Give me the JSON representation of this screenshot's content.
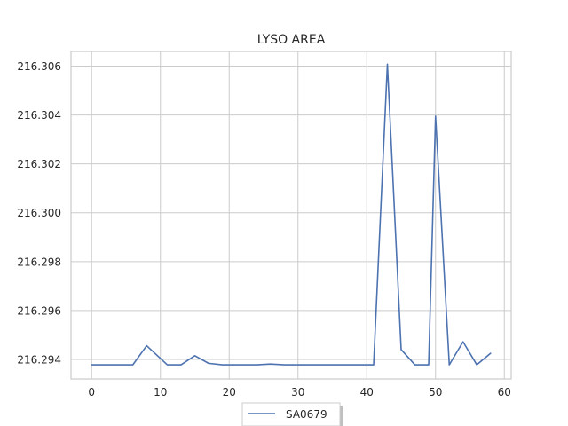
{
  "chart_data": {
    "type": "line",
    "title": "LYSO AREA",
    "xlabel": "",
    "ylabel": "",
    "xlim": [
      -3,
      61
    ],
    "ylim": [
      216.2932,
      216.3066
    ],
    "x_ticks": [
      0,
      10,
      20,
      30,
      40,
      50,
      60
    ],
    "y_ticks": [
      216.294,
      216.296,
      216.298,
      216.3,
      216.302,
      216.304,
      216.306
    ],
    "y_tick_labels": [
      "216.294",
      "216.296",
      "216.298",
      "216.300",
      "216.302",
      "216.304",
      "216.306"
    ],
    "grid": true,
    "legend_position": "lower center",
    "series": [
      {
        "name": "SA0679",
        "color": "#4c72b0",
        "x": [
          0,
          2,
          4,
          6,
          8,
          11,
          13,
          15,
          17,
          19,
          22,
          24,
          26,
          28,
          30,
          32,
          34,
          37,
          39,
          41,
          43,
          45,
          47,
          49,
          50,
          52,
          54,
          56,
          58
        ],
        "y": [
          216.29378,
          216.29378,
          216.29378,
          216.29378,
          216.29456,
          216.29378,
          216.29378,
          216.29415,
          216.29384,
          216.29378,
          216.29378,
          216.29378,
          216.29381,
          216.29378,
          216.29378,
          216.29378,
          216.29378,
          216.29378,
          216.29378,
          216.29378,
          216.30608,
          216.2944,
          216.29378,
          216.29378,
          216.30395,
          216.29378,
          216.29472,
          216.29378,
          216.29425
        ]
      }
    ]
  }
}
